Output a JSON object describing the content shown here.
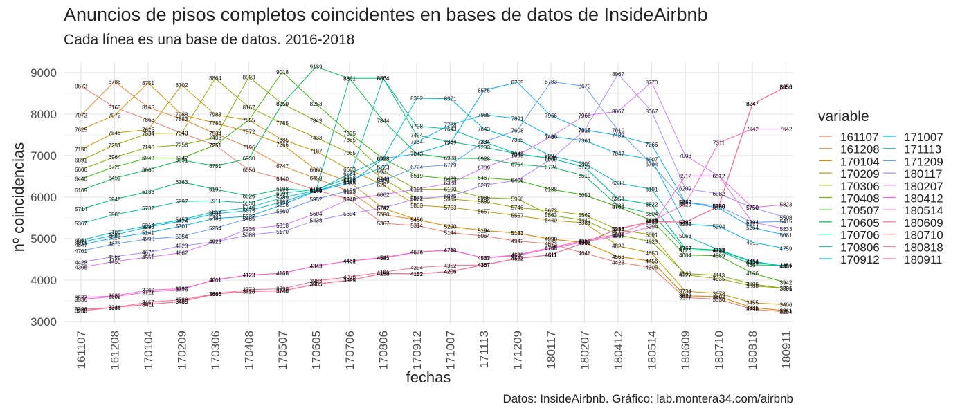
{
  "title": "Anuncios de pisos completos coincidentes en bases de datos de InsideAirbnb",
  "subtitle": "Cada línea es una base de datos. 2016-2018",
  "caption": "Datos: InsideAirbnb. Gráfico: lab.montera34.com/airbnb",
  "chart_data": {
    "type": "line",
    "title": "Anuncios de pisos completos coincidentes en bases de datos de InsideAirbnb",
    "subtitle": "Cada línea es una base de datos. 2016-2018",
    "xlabel": "fechas",
    "ylabel": "nº coincidencias",
    "legend_title": "variable",
    "legend_position": "right",
    "grid": true,
    "ylim": [
      2950,
      9250
    ],
    "yticks": [
      3000,
      4000,
      5000,
      6000,
      7000,
      8000,
      9000
    ],
    "categories": [
      "161107",
      "161208",
      "170104",
      "170209",
      "170306",
      "170408",
      "170507",
      "170605",
      "170706",
      "170806",
      "170912",
      "171007",
      "171113",
      "171209",
      "180117",
      "180207",
      "180412",
      "180514",
      "180609",
      "180710",
      "180818",
      "180911"
    ],
    "series": [
      {
        "name": "161107",
        "color": "#F8766D",
        "values": [
          8673,
          8165,
          7863,
          7540,
          7251,
          6656,
          6440,
          6169,
          5948,
          5367,
          5314,
          5144,
          5064,
          4942,
          4873,
          4648,
          4428,
          4305,
          3577,
          3536,
          3296,
          3234
        ]
      },
      {
        "name": "161208",
        "color": "#EA8331",
        "values": [
          7972,
          8786,
          8165,
          7883,
          7534,
          7196,
          6747,
          6459,
          6133,
          5580,
          5456,
          5290,
          5194,
          5133,
          4990,
          4903,
          4568,
          4456,
          3622,
          3602,
          3336,
          3261
        ]
      },
      {
        "name": "170104",
        "color": "#D89000",
        "values": [
          7625,
          7972,
          8751,
          7988,
          7785,
          7572,
          7266,
          6660,
          6363,
          5732,
          5456,
          5290,
          5194,
          5133,
          4990,
          4903,
          4568,
          4456,
          3622,
          3602,
          3336,
          3261
        ]
      },
      {
        "name": "170209",
        "color": "#C09B00",
        "values": [
          7150,
          7546,
          7625,
          8702,
          7988,
          7855,
          7385,
          7107,
          6663,
          6291,
          5803,
          5753,
          5657,
          5557,
          5440,
          5381,
          4823,
          4650,
          3734,
          3678,
          3455,
          3406
        ]
      },
      {
        "name": "170306",
        "color": "#A3A500",
        "values": [
          6891,
          7251,
          7534,
          7540,
          8864,
          8167,
          7785,
          7433,
          7065,
          6440,
          5972,
          5955,
          5889,
          5746,
          5673,
          5569,
          5212,
          5091,
          4127,
          4035,
          3860,
          3801
        ]
      },
      {
        "name": "170408",
        "color": "#7CAE00",
        "values": [
          6666,
          6964,
          7196,
          7256,
          7433,
          8893,
          8250,
          7843,
          7385,
          6627,
          6191,
          6190,
          5986,
          5958,
          5563,
          5442,
          5091,
          4923,
          4160,
          4113,
          3906,
          3796
        ]
      },
      {
        "name": "170507",
        "color": "#39B600",
        "values": [
          6440,
          6728,
          6943,
          6942,
          7251,
          7855,
          9018,
          8253,
          7535,
          6928,
          6519,
          6439,
          6467,
          6406,
          6188,
          6051,
          5765,
          5438,
          4604,
          4589,
          4166,
          3942
        ]
      },
      {
        "name": "170605",
        "color": "#00BB4E",
        "values": [
          6169,
          6459,
          6660,
          6891,
          6751,
          6930,
          8250,
          9139,
          8861,
          7844,
          7043,
          6938,
          6928,
          6794,
          6724,
          6519,
          5788,
          5604,
          4728,
          4711,
          4367,
          4356
        ]
      },
      {
        "name": "170706",
        "color": "#00BF7D",
        "values": [
          5714,
          5948,
          6133,
          6363,
          6190,
          6026,
          6198,
          6160,
          8861,
          8864,
          7494,
          7334,
          7203,
          7043,
          6930,
          6727,
          5958,
          5822,
          4767,
          4723,
          4436,
          4331
        ]
      },
      {
        "name": "170806",
        "color": "#00C1A3",
        "values": [
          5367,
          5580,
          5732,
          5897,
          5911,
          5858,
          6094,
          6185,
          6468,
          8864,
          7708,
          7643,
          7334,
          7043,
          6930,
          6727,
          5958,
          5822,
          4767,
          4723,
          4436,
          4331
        ]
      },
      {
        "name": "170912",
        "color": "#00BFC4",
        "values": [
          4961,
          5160,
          5314,
          5457,
          5653,
          5746,
          5989,
          6159,
          6564,
          6928,
          8382,
          8371,
          7643,
          7385,
          6997,
          6806,
          6338,
          6191,
          5068,
          4731,
          4454,
          4331
        ]
      },
      {
        "name": "171007",
        "color": "#00B9E3",
        "values": [
          4911,
          5086,
          5280,
          5424,
          5601,
          5675,
          5886,
          6147,
          6400,
          6723,
          7334,
          7738,
          7985,
          7891,
          7460,
          7361,
          7047,
          6907,
          5350,
          5294,
          4911,
          4759
        ]
      },
      {
        "name": "171113",
        "color": "#00ADFA",
        "values": [
          4847,
          5024,
          5141,
          5301,
          5488,
          5537,
          5816,
          6149,
          6335,
          6928,
          7043,
          7297,
          8575,
          8765,
          7966,
          7618,
          7489,
          7266,
          5882,
          5737,
          5264,
          5081
        ]
      },
      {
        "name": "171209",
        "color": "#619CFF",
        "values": [
          4701,
          4873,
          4990,
          5054,
          5254,
          5485,
          5660,
          5952,
          6159,
          6400,
          6724,
          6779,
          7334,
          7608,
          8783,
          8673,
          7610,
          6794,
          5882,
          5780,
          5394,
          5415
        ]
      },
      {
        "name": "180117",
        "color": "#AE87FF",
        "values": [
          4428,
          4568,
          4670,
          4823,
          4923,
          5088,
          5170,
          5438,
          5604,
          5742,
          5961,
          6026,
          6287,
          6406,
          6909,
          7610,
          8967,
          8067,
          6209,
          6082,
          5750,
          5508
        ]
      },
      {
        "name": "180207",
        "color": "#DB72FB",
        "values": [
          4305,
          4450,
          4551,
          4662,
          4923,
          5235,
          5318,
          5604,
          5948,
          6062,
          6191,
          6338,
          6709,
          7005,
          7454,
          7966,
          8067,
          8770,
          7003,
          6512,
          5394,
          5233
        ]
      },
      {
        "name": "180412",
        "color": "#F564E3",
        "values": [
          3577,
          3622,
          3760,
          3792,
          4001,
          4123,
          4165,
          4342,
          4464,
          4531,
          4674,
          4731,
          4533,
          4590,
          4763,
          4923,
          5067,
          5294,
          6512,
          6512,
          5750,
          5823
        ]
      },
      {
        "name": "180514",
        "color": "#FF61C3",
        "values": [
          3536,
          3602,
          3711,
          3776,
          4011,
          4122,
          4166,
          4343,
          4462,
          4545,
          4676,
          4718,
          4537,
          4608,
          4788,
          4950,
          5107,
          5421,
          5829,
          7311,
          7642,
          7642
        ]
      },
      {
        "name": "180609",
        "color": "#FF6C91",
        "values": [
          3296,
          3336,
          3467,
          3526,
          3666,
          3772,
          3790,
          3983,
          4078,
          4191,
          4304,
          4352,
          4367,
          4522,
          4611,
          4903,
          5233,
          5410,
          5395,
          5780,
          8247,
          8656
        ]
      },
      {
        "name": "180710",
        "color": "#F8766D",
        "values": [
          3260,
          3344,
          3411,
          3485,
          3666,
          3726,
          3740,
          3905,
          3999,
          4158,
          4152,
          4206,
          4367,
          4522,
          4611,
          4903,
          5233,
          5410,
          5395,
          5780,
          8247,
          8656
        ]
      },
      {
        "name": "180818",
        "color": "#FC717F",
        "values": [
          3260,
          3344,
          3411,
          3485,
          3666,
          3726,
          3740,
          3905,
          3999,
          4158,
          4152,
          4206,
          4367,
          4522,
          4611,
          4903,
          5233,
          5410,
          5395,
          5780,
          8247,
          8656
        ]
      },
      {
        "name": "180911",
        "color": "#FF699C",
        "values": [
          3260,
          3344,
          3411,
          3485,
          3666,
          3726,
          3740,
          3905,
          3999,
          4158,
          4152,
          4206,
          4367,
          4522,
          4611,
          4903,
          5233,
          5410,
          5395,
          5780,
          8247,
          8656
        ]
      }
    ]
  }
}
